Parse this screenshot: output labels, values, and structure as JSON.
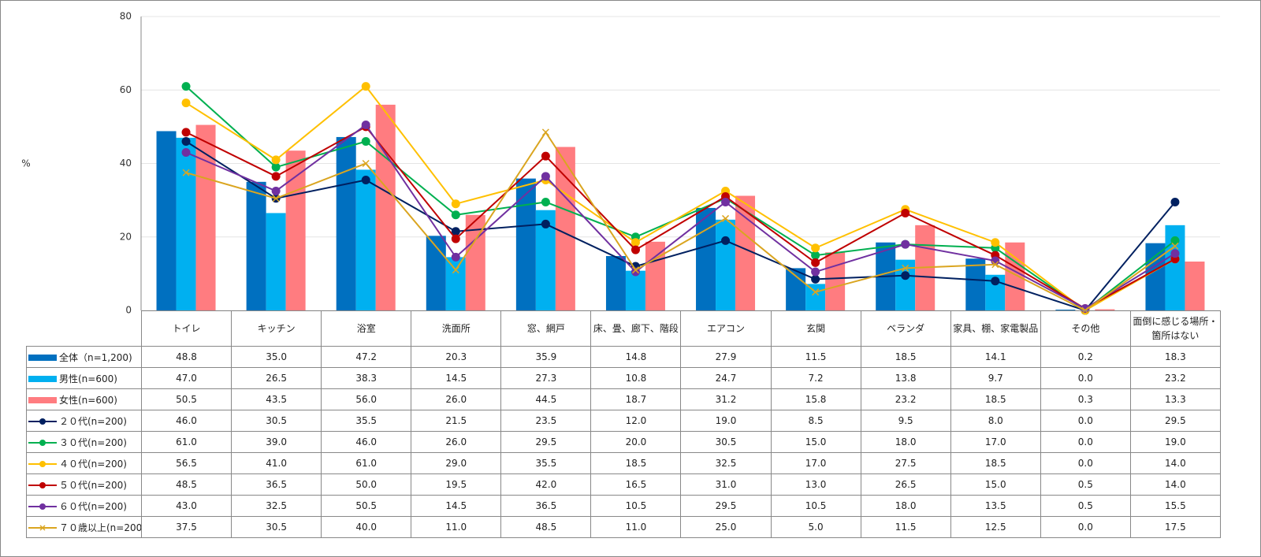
{
  "chart_data": {
    "type": "combo",
    "y_label": "%",
    "categories": [
      "トイレ",
      "キッチン",
      "浴室",
      "洗面所",
      "窓、網戸",
      "床、畳、廊下、階段",
      "エアコン",
      "玄関",
      "ベランダ",
      "家具、棚、家電製品",
      "その他",
      "面倒に感じる場所・箇所はない"
    ],
    "ylim": [
      0,
      80
    ],
    "yticks": [
      0,
      20,
      40,
      60,
      80
    ],
    "grid": true,
    "series": [
      {
        "name": "全体（n=1,200)",
        "type": "bar",
        "color": "#0070c0",
        "values": [
          48.8,
          35.0,
          47.2,
          20.3,
          35.9,
          14.8,
          27.9,
          11.5,
          18.5,
          14.1,
          0.2,
          18.3
        ],
        "value_labels": [
          "48.8",
          "35.0",
          "47.2",
          "20.3",
          "35.9",
          "14.8",
          "27.9",
          "11.5",
          "18.5",
          "14.1",
          "0.2",
          "18.3"
        ]
      },
      {
        "name": "男性(n=600)",
        "type": "bar",
        "color": "#00b0f0",
        "values": [
          47.0,
          26.5,
          38.3,
          14.5,
          27.3,
          10.8,
          24.7,
          7.2,
          13.8,
          9.7,
          0.0,
          23.2
        ],
        "value_labels": [
          "47.0",
          "26.5",
          "38.3",
          "14.5",
          "27.3",
          "10.8",
          "24.7",
          "7.2",
          "13.8",
          "9.7",
          "0.0",
          "23.2"
        ]
      },
      {
        "name": "女性(n=600)",
        "type": "bar",
        "color": "#ff7c80",
        "values": [
          50.5,
          43.5,
          56.0,
          26.0,
          44.5,
          18.7,
          31.2,
          15.8,
          23.2,
          18.5,
          0.3,
          13.3
        ],
        "value_labels": [
          "50.5",
          "43.5",
          "56.0",
          "26.0",
          "44.5",
          "18.7",
          "31.2",
          "15.8",
          "23.2",
          "18.5",
          "0.3",
          "13.3"
        ]
      },
      {
        "name": "２０代(n=200)",
        "type": "line",
        "marker": "circle",
        "color": "#002060",
        "values": [
          46.0,
          30.5,
          35.5,
          21.5,
          23.5,
          12.0,
          19.0,
          8.5,
          9.5,
          8.0,
          0.0,
          29.5
        ],
        "value_labels": [
          "46.0",
          "30.5",
          "35.5",
          "21.5",
          "23.5",
          "12.0",
          "19.0",
          "8.5",
          "9.5",
          "8.0",
          "0.0",
          "29.5"
        ]
      },
      {
        "name": "３０代(n=200)",
        "type": "line",
        "marker": "circle",
        "color": "#00b050",
        "values": [
          61.0,
          39.0,
          46.0,
          26.0,
          29.5,
          20.0,
          30.5,
          15.0,
          18.0,
          17.0,
          0.0,
          19.0
        ],
        "value_labels": [
          "61.0",
          "39.0",
          "46.0",
          "26.0",
          "29.5",
          "20.0",
          "30.5",
          "15.0",
          "18.0",
          "17.0",
          "0.0",
          "19.0"
        ]
      },
      {
        "name": "４０代(n=200)",
        "type": "line",
        "marker": "circle",
        "color": "#ffc000",
        "values": [
          56.5,
          41.0,
          61.0,
          29.0,
          35.5,
          18.5,
          32.5,
          17.0,
          27.5,
          18.5,
          0.0,
          14.0
        ],
        "value_labels": [
          "56.5",
          "41.0",
          "61.0",
          "29.0",
          "35.5",
          "18.5",
          "32.5",
          "17.0",
          "27.5",
          "18.5",
          "0.0",
          "14.0"
        ]
      },
      {
        "name": "５０代(n=200)",
        "type": "line",
        "marker": "circle",
        "color": "#c00000",
        "values": [
          48.5,
          36.5,
          50.0,
          19.5,
          42.0,
          16.5,
          31.0,
          13.0,
          26.5,
          15.0,
          0.5,
          14.0
        ],
        "value_labels": [
          "48.5",
          "36.5",
          "50.0",
          "19.5",
          "42.0",
          "16.5",
          "31.0",
          "13.0",
          "26.5",
          "15.0",
          "0.5",
          "14.0"
        ]
      },
      {
        "name": "６０代(n=200)",
        "type": "line",
        "marker": "circle",
        "color": "#7030a0",
        "values": [
          43.0,
          32.5,
          50.5,
          14.5,
          36.5,
          10.5,
          29.5,
          10.5,
          18.0,
          13.5,
          0.5,
          15.5
        ],
        "value_labels": [
          "43.0",
          "32.5",
          "50.5",
          "14.5",
          "36.5",
          "10.5",
          "29.5",
          "10.5",
          "18.0",
          "13.5",
          "0.5",
          "15.5"
        ]
      },
      {
        "name": "７０歳以上(n=200)",
        "type": "line",
        "marker": "x",
        "color": "#daa520",
        "values": [
          37.5,
          30.5,
          40.0,
          11.0,
          48.5,
          11.0,
          25.0,
          5.0,
          11.5,
          12.5,
          0.0,
          17.5
        ],
        "value_labels": [
          "37.5",
          "30.5",
          "40.0",
          "11.0",
          "48.5",
          "11.0",
          "25.0",
          "5.0",
          "11.5",
          "12.5",
          "0.0",
          "17.5"
        ]
      }
    ]
  }
}
